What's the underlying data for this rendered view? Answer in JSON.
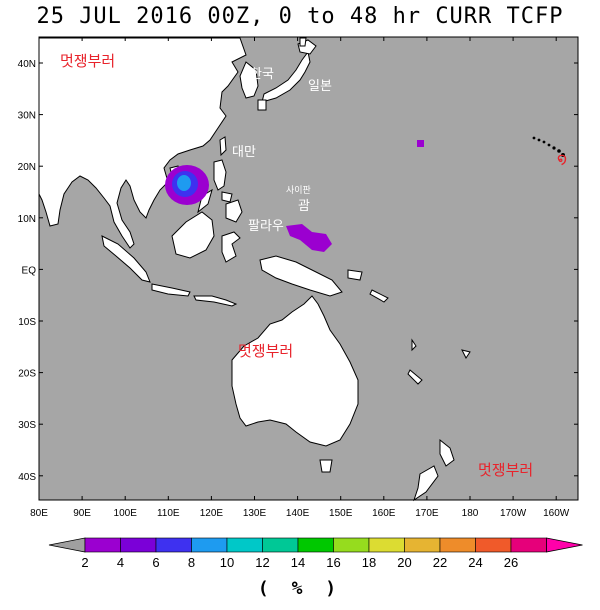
{
  "title": "25 JUL 2016 00Z,  0 to  48 hr CURR TCFP",
  "lat_labels": [
    "40N",
    "30N",
    "20N",
    "10N",
    "EQ",
    "10S",
    "20S",
    "30S",
    "40S"
  ],
  "lon_labels": [
    "80E",
    "90E",
    "100E",
    "110E",
    "120E",
    "130E",
    "140E",
    "150E",
    "160E",
    "170E",
    "180",
    "170W",
    "160W"
  ],
  "country_labels": [
    "한국",
    "일본",
    "대만",
    "사이판",
    "괌",
    "팔라우"
  ],
  "watermarks": [
    "멋쟁부러",
    "멋쟁부러",
    "멋쟁부러"
  ],
  "colorbar": {
    "ticks": [
      "2",
      "4",
      "6",
      "8",
      "10",
      "12",
      "14",
      "16",
      "18",
      "20",
      "22",
      "24",
      "26"
    ],
    "colors": [
      "#9b00d0",
      "#7b00d8",
      "#3e31f0",
      "#1e9bf0",
      "#00c8c8",
      "#00c896",
      "#00c800",
      "#96dc1e",
      "#dcdc32",
      "#e6b432",
      "#ee8c2a",
      "#f05a2a",
      "#e6007a"
    ],
    "under_color": "#a0a0a0",
    "over_color": "#ff00aa"
  },
  "unit_label": "( % )",
  "colors": {
    "ocean": "#a6a6a6",
    "land": "#ffffff",
    "coast": "#000000",
    "watermark": "#e8232b"
  }
}
